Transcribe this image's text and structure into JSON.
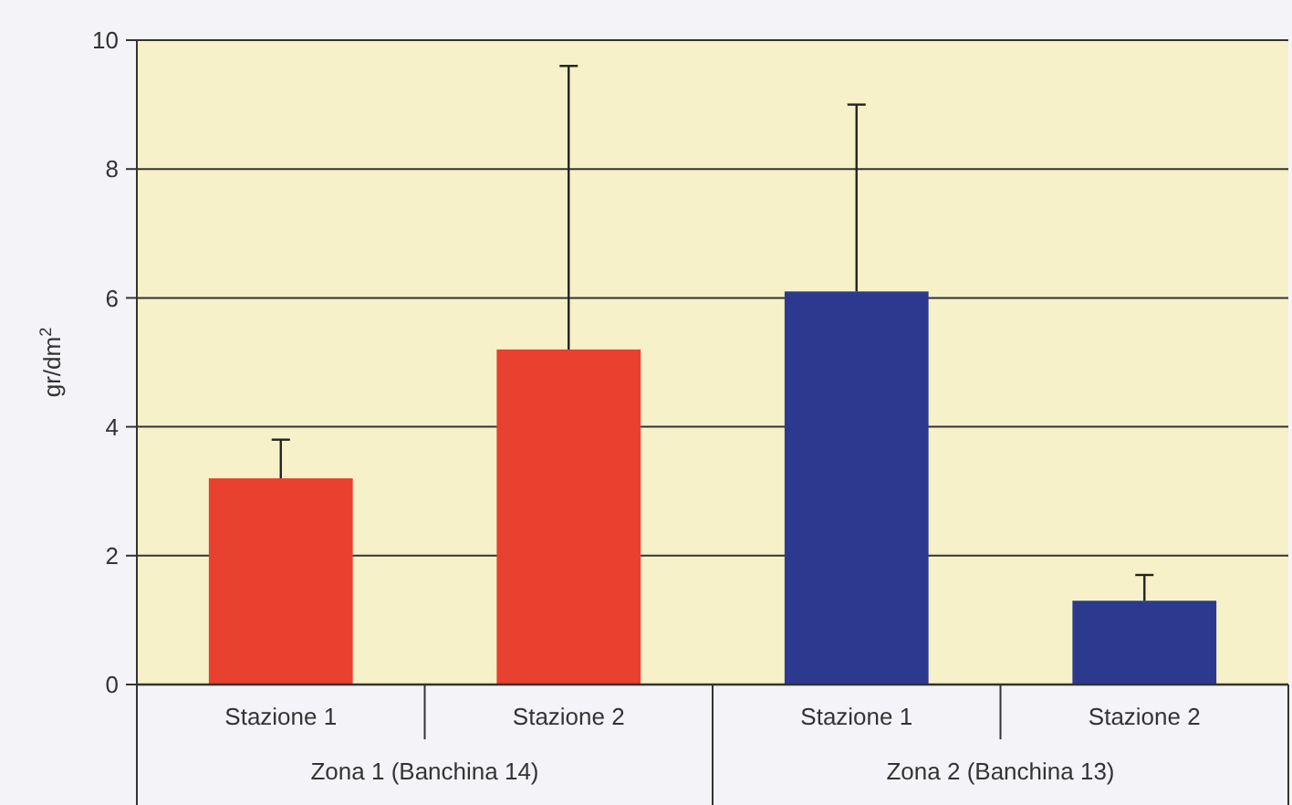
{
  "chart_data": {
    "type": "bar",
    "ylabel": "gr/dm$^{2}$",
    "categories": [
      "Stazione 1",
      "Stazione 2",
      "Stazione 1",
      "Stazione 2"
    ],
    "values": [
      3.2,
      5.2,
      6.1,
      1.3
    ],
    "errors": [
      [
        3.2,
        3.8
      ],
      [
        5.2,
        9.6
      ],
      [
        6.1,
        9.0
      ],
      [
        1.3,
        1.7
      ]
    ],
    "colors": [
      "#e8412f",
      "#e8412f",
      "#2b3a8f",
      "#2b3a8f"
    ],
    "annotations": [
      "Zona 1 (Banchina 14)",
      "Zona 2 (Banchina 13)"
    ],
    "ylim": [
      0,
      10
    ],
    "yticks": [
      0,
      2,
      4,
      6,
      8,
      10
    ],
    "grid": "y"
  }
}
